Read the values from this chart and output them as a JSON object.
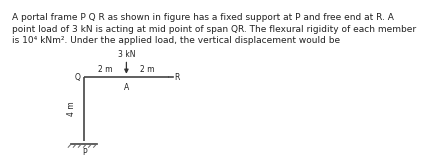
{
  "bg_color": "#ffffff",
  "frame_color": "#444444",
  "text_color": "#222222",
  "hatch_color": "#666666",
  "arrow_color": "#333333",
  "paragraph": "A portal frame P Q R as shown in figure has a fixed support at P and free end at R. A\npoint load of 3 kN is acting at mid point of span QR. The flexural rigidity of each member\nis 10⁴ kNm². Under the applied load, the vertical displacement would be",
  "load_label": "3 kN",
  "label_Q": "Q",
  "label_R": "R",
  "label_A": "A",
  "label_P": "P",
  "dim_left": "2 m",
  "dim_right": "2 m",
  "dim_vert": "4 m",
  "Q": [
    0.0,
    0.0
  ],
  "R": [
    1.0,
    0.0
  ],
  "P": [
    0.0,
    -1.0
  ],
  "A": [
    0.5,
    0.0
  ],
  "linewidth": 1.2,
  "fontsize_para": 6.5,
  "fontsize_diagram": 5.5
}
